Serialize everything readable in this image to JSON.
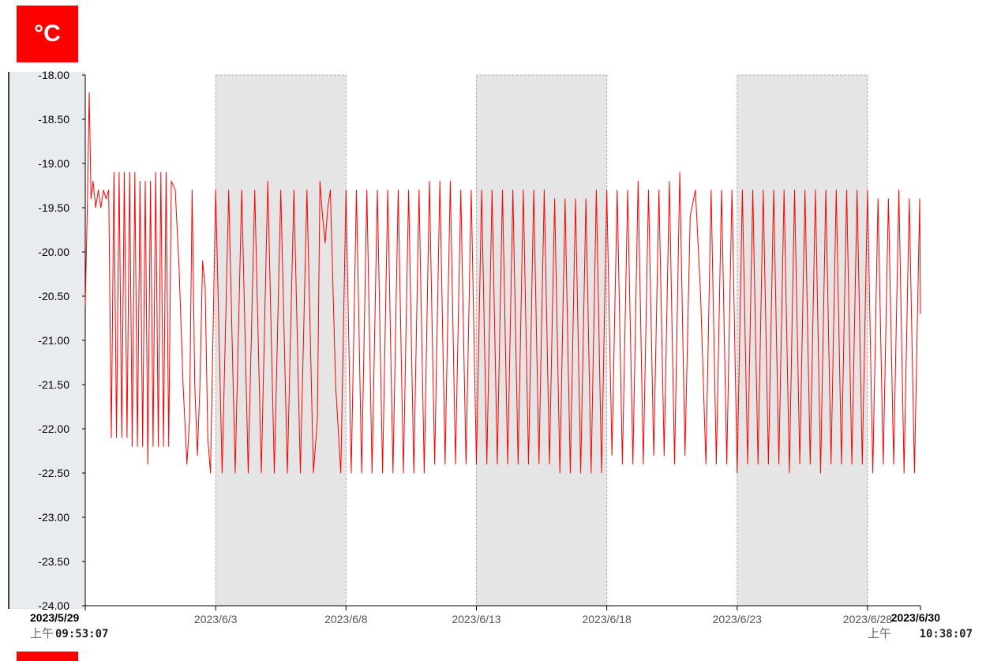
{
  "unit_label": "°C",
  "chart_data": {
    "type": "line",
    "title": "",
    "xlabel": "",
    "ylabel": "",
    "ylim": [
      -24.0,
      -18.0
    ],
    "y_ticks": [
      "-18.00",
      "-18.50",
      "-19.00",
      "-19.50",
      "-20.00",
      "-20.50",
      "-21.00",
      "-21.50",
      "-22.00",
      "-22.50",
      "-23.00",
      "-23.50",
      "-24.00"
    ],
    "x_start": "2023/5/29",
    "x_end": "2023/6/30",
    "x_ticks": [
      "2023/6/3",
      "2023/6/8",
      "2023/6/13",
      "2023/6/18",
      "2023/6/23",
      "2023/6/28"
    ],
    "start_label": {
      "date": "2023/5/29",
      "ampm": "上午",
      "time": "09:53:07"
    },
    "end_label": {
      "date": "2023/6/30",
      "ampm": "上午",
      "time": "10:38:07"
    },
    "shaded_bands": [
      [
        "2023/6/3",
        "2023/6/8"
      ],
      [
        "2023/6/13",
        "2023/6/18"
      ],
      [
        "2023/6/23",
        "2023/6/28"
      ]
    ],
    "grid": false,
    "line_color": "#ff0000",
    "series": [
      {
        "values_xy": [
          [
            0.0,
            -20.6
          ],
          [
            0.08,
            -19.5
          ],
          [
            0.15,
            -18.2
          ],
          [
            0.22,
            -19.4
          ],
          [
            0.3,
            -19.2
          ],
          [
            0.4,
            -19.5
          ],
          [
            0.5,
            -19.3
          ],
          [
            0.6,
            -19.5
          ],
          [
            0.7,
            -19.3
          ],
          [
            0.8,
            -19.4
          ],
          [
            0.9,
            -19.3
          ],
          [
            1.0,
            -22.1
          ],
          [
            1.1,
            -19.1
          ],
          [
            1.2,
            -22.1
          ],
          [
            1.3,
            -19.1
          ],
          [
            1.4,
            -22.1
          ],
          [
            1.5,
            -19.1
          ],
          [
            1.6,
            -22.1
          ],
          [
            1.7,
            -19.1
          ],
          [
            1.8,
            -22.2
          ],
          [
            1.9,
            -19.1
          ],
          [
            2.0,
            -22.2
          ],
          [
            2.1,
            -19.2
          ],
          [
            2.2,
            -22.2
          ],
          [
            2.3,
            -19.2
          ],
          [
            2.4,
            -22.4
          ],
          [
            2.5,
            -19.2
          ],
          [
            2.6,
            -22.2
          ],
          [
            2.7,
            -19.1
          ],
          [
            2.8,
            -22.2
          ],
          [
            2.9,
            -19.1
          ],
          [
            3.0,
            -22.2
          ],
          [
            3.1,
            -19.1
          ],
          [
            3.2,
            -22.2
          ],
          [
            3.3,
            -19.2
          ],
          [
            3.45,
            -19.3
          ],
          [
            3.6,
            -20.2
          ],
          [
            3.75,
            -21.5
          ],
          [
            3.9,
            -22.4
          ],
          [
            4.0,
            -21.9
          ],
          [
            4.1,
            -19.3
          ],
          [
            4.2,
            -21.5
          ],
          [
            4.3,
            -22.3
          ],
          [
            4.4,
            -21.5
          ],
          [
            4.5,
            -20.1
          ],
          [
            4.6,
            -20.4
          ],
          [
            4.7,
            -22.1
          ],
          [
            4.8,
            -22.5
          ],
          [
            5.0,
            -19.3
          ],
          [
            5.25,
            -22.5
          ],
          [
            5.5,
            -19.3
          ],
          [
            5.75,
            -22.5
          ],
          [
            6.0,
            -19.3
          ],
          [
            6.25,
            -22.5
          ],
          [
            6.5,
            -19.3
          ],
          [
            6.75,
            -22.5
          ],
          [
            7.0,
            -19.2
          ],
          [
            7.25,
            -22.5
          ],
          [
            7.5,
            -19.3
          ],
          [
            7.75,
            -22.5
          ],
          [
            8.0,
            -19.3
          ],
          [
            8.25,
            -22.5
          ],
          [
            8.5,
            -19.3
          ],
          [
            8.75,
            -22.5
          ],
          [
            8.9,
            -21.9
          ],
          [
            9.0,
            -19.2
          ],
          [
            9.1,
            -19.6
          ],
          [
            9.2,
            -19.9
          ],
          [
            9.3,
            -19.5
          ],
          [
            9.4,
            -19.3
          ],
          [
            9.6,
            -21.5
          ],
          [
            9.8,
            -22.5
          ],
          [
            10.0,
            -19.3
          ],
          [
            10.2,
            -22.5
          ],
          [
            10.4,
            -19.3
          ],
          [
            10.6,
            -22.5
          ],
          [
            10.8,
            -19.3
          ],
          [
            11.0,
            -22.5
          ],
          [
            11.2,
            -19.3
          ],
          [
            11.4,
            -22.5
          ],
          [
            11.6,
            -19.3
          ],
          [
            11.8,
            -22.5
          ],
          [
            12.0,
            -19.3
          ],
          [
            12.2,
            -22.5
          ],
          [
            12.4,
            -19.3
          ],
          [
            12.6,
            -22.5
          ],
          [
            12.8,
            -19.3
          ],
          [
            13.0,
            -22.5
          ],
          [
            13.2,
            -19.2
          ],
          [
            13.4,
            -22.4
          ],
          [
            13.6,
            -19.2
          ],
          [
            13.8,
            -22.4
          ],
          [
            14.0,
            -19.2
          ],
          [
            14.2,
            -22.4
          ],
          [
            14.4,
            -19.3
          ],
          [
            14.6,
            -22.4
          ],
          [
            14.8,
            -19.3
          ],
          [
            15.0,
            -22.4
          ],
          [
            15.2,
            -19.3
          ],
          [
            15.4,
            -22.4
          ],
          [
            15.6,
            -19.3
          ],
          [
            15.8,
            -22.4
          ],
          [
            16.0,
            -19.3
          ],
          [
            16.2,
            -22.4
          ],
          [
            16.4,
            -19.3
          ],
          [
            16.6,
            -22.4
          ],
          [
            16.8,
            -19.3
          ],
          [
            17.0,
            -22.4
          ],
          [
            17.2,
            -19.3
          ],
          [
            17.4,
            -22.4
          ],
          [
            17.6,
            -19.3
          ],
          [
            17.8,
            -22.4
          ],
          [
            18.0,
            -19.4
          ],
          [
            18.2,
            -22.5
          ],
          [
            18.4,
            -19.4
          ],
          [
            18.6,
            -22.5
          ],
          [
            18.8,
            -19.4
          ],
          [
            19.0,
            -22.5
          ],
          [
            19.2,
            -19.4
          ],
          [
            19.4,
            -22.5
          ],
          [
            19.6,
            -19.3
          ],
          [
            19.8,
            -22.5
          ],
          [
            20.0,
            -19.3
          ],
          [
            20.2,
            -22.3
          ],
          [
            20.4,
            -19.3
          ],
          [
            20.6,
            -22.4
          ],
          [
            20.8,
            -19.3
          ],
          [
            21.0,
            -22.4
          ],
          [
            21.2,
            -19.2
          ],
          [
            21.4,
            -22.4
          ],
          [
            21.6,
            -19.3
          ],
          [
            21.8,
            -22.3
          ],
          [
            22.0,
            -19.3
          ],
          [
            22.2,
            -22.3
          ],
          [
            22.4,
            -19.2
          ],
          [
            22.6,
            -22.4
          ],
          [
            22.8,
            -19.1
          ],
          [
            23.0,
            -22.3
          ],
          [
            23.2,
            -19.6
          ],
          [
            23.4,
            -19.3
          ],
          [
            23.6,
            -20.5
          ],
          [
            23.8,
            -22.4
          ],
          [
            24.0,
            -19.3
          ],
          [
            24.2,
            -22.4
          ],
          [
            24.4,
            -19.3
          ],
          [
            24.6,
            -22.4
          ],
          [
            24.8,
            -19.3
          ],
          [
            25.0,
            -22.5
          ],
          [
            25.2,
            -19.3
          ],
          [
            25.4,
            -22.4
          ],
          [
            25.6,
            -19.3
          ],
          [
            25.8,
            -22.4
          ],
          [
            26.0,
            -19.3
          ],
          [
            26.2,
            -22.4
          ],
          [
            26.4,
            -19.3
          ],
          [
            26.6,
            -22.4
          ],
          [
            26.8,
            -19.3
          ],
          [
            27.0,
            -22.5
          ],
          [
            27.2,
            -19.3
          ],
          [
            27.4,
            -22.4
          ],
          [
            27.6,
            -19.3
          ],
          [
            27.8,
            -22.4
          ],
          [
            28.0,
            -19.3
          ],
          [
            28.2,
            -22.5
          ],
          [
            28.4,
            -19.3
          ],
          [
            28.6,
            -22.4
          ],
          [
            28.8,
            -19.3
          ],
          [
            29.0,
            -22.4
          ],
          [
            29.2,
            -19.3
          ],
          [
            29.4,
            -22.4
          ],
          [
            29.6,
            -19.3
          ],
          [
            29.8,
            -22.4
          ],
          [
            30.0,
            -19.3
          ],
          [
            30.2,
            -22.5
          ],
          [
            30.4,
            -19.4
          ],
          [
            30.6,
            -22.4
          ],
          [
            30.8,
            -19.4
          ],
          [
            31.0,
            -22.4
          ],
          [
            31.2,
            -19.3
          ],
          [
            31.4,
            -22.5
          ],
          [
            31.6,
            -19.4
          ],
          [
            31.8,
            -22.5
          ],
          [
            32.0,
            -19.4
          ],
          [
            32.03,
            -20.7
          ]
        ]
      }
    ]
  }
}
